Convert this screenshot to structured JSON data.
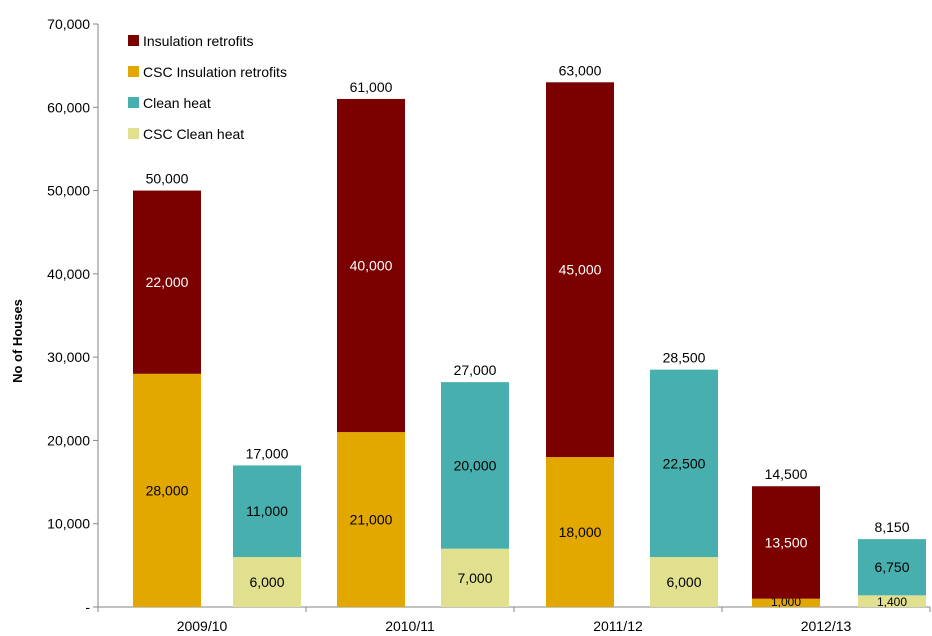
{
  "chart_data": {
    "type": "bar",
    "stacked": true,
    "ylabel": "No of Houses",
    "xlabel": "",
    "ylim": [
      0,
      70000
    ],
    "y_ticks": [
      {
        "value": 0,
        "label": "-"
      },
      {
        "value": 10000,
        "label": "10,000"
      },
      {
        "value": 20000,
        "label": "20,000"
      },
      {
        "value": 30000,
        "label": "30,000"
      },
      {
        "value": 40000,
        "label": "40,000"
      },
      {
        "value": 50000,
        "label": "50,000"
      },
      {
        "value": 60000,
        "label": "60,000"
      },
      {
        "value": 70000,
        "label": "70,000"
      }
    ],
    "categories": [
      "2009/10",
      "2010/11",
      "2011/12",
      "2012/13"
    ],
    "legend": {
      "position": "top-left",
      "entries": [
        {
          "name": "Insulation retrofits",
          "color": "#7b0000"
        },
        {
          "name": "CSC Insulation retrofits",
          "color": "#e2a800"
        },
        {
          "name": "Clean heat",
          "color": "#47b0ae"
        },
        {
          "name": "CSC Clean heat",
          "color": "#e0e08f"
        }
      ]
    },
    "bars": [
      {
        "category": "2009/10",
        "group": "insulation",
        "total": 50000,
        "total_label": "50,000",
        "segments": [
          {
            "series": "CSC Insulation retrofits",
            "value": 28000,
            "label": "28,000",
            "color": "#e2a800",
            "text_color": "#000000"
          },
          {
            "series": "Insulation retrofits",
            "value": 22000,
            "label": "22,000",
            "color": "#7b0000",
            "text_color": "#ffffff"
          }
        ]
      },
      {
        "category": "2009/10",
        "group": "clean-heat",
        "total": 17000,
        "total_label": "17,000",
        "segments": [
          {
            "series": "CSC Clean heat",
            "value": 6000,
            "label": "6,000",
            "color": "#e0e08f",
            "text_color": "#000000"
          },
          {
            "series": "Clean heat",
            "value": 11000,
            "label": "11,000",
            "color": "#47b0ae",
            "text_color": "#000000"
          }
        ]
      },
      {
        "category": "2010/11",
        "group": "insulation",
        "total": 61000,
        "total_label": "61,000",
        "segments": [
          {
            "series": "CSC Insulation retrofits",
            "value": 21000,
            "label": "21,000",
            "color": "#e2a800",
            "text_color": "#000000"
          },
          {
            "series": "Insulation retrofits",
            "value": 40000,
            "label": "40,000",
            "color": "#7b0000",
            "text_color": "#ffffff"
          }
        ]
      },
      {
        "category": "2010/11",
        "group": "clean-heat",
        "total": 27000,
        "total_label": "27,000",
        "segments": [
          {
            "series": "CSC Clean heat",
            "value": 7000,
            "label": "7,000",
            "color": "#e0e08f",
            "text_color": "#000000"
          },
          {
            "series": "Clean heat",
            "value": 20000,
            "label": "20,000",
            "color": "#47b0ae",
            "text_color": "#000000"
          }
        ]
      },
      {
        "category": "2011/12",
        "group": "insulation",
        "total": 63000,
        "total_label": "63,000",
        "segments": [
          {
            "series": "CSC Insulation retrofits",
            "value": 18000,
            "label": "18,000",
            "color": "#e2a800",
            "text_color": "#000000"
          },
          {
            "series": "Insulation retrofits",
            "value": 45000,
            "label": "45,000",
            "color": "#7b0000",
            "text_color": "#ffffff"
          }
        ]
      },
      {
        "category": "2011/12",
        "group": "clean-heat",
        "total": 28500,
        "total_label": "28,500",
        "segments": [
          {
            "series": "CSC Clean heat",
            "value": 6000,
            "label": "6,000",
            "color": "#e0e08f",
            "text_color": "#000000"
          },
          {
            "series": "Clean heat",
            "value": 22500,
            "label": "22,500",
            "color": "#47b0ae",
            "text_color": "#000000"
          }
        ]
      },
      {
        "category": "2012/13",
        "group": "insulation",
        "total": 14500,
        "total_label": "14,500",
        "segments": [
          {
            "series": "CSC Insulation retrofits",
            "value": 1000,
            "label": "1,000",
            "color": "#e2a800",
            "text_color": "#000000"
          },
          {
            "series": "Insulation retrofits",
            "value": 13500,
            "label": "13,500",
            "color": "#7b0000",
            "text_color": "#ffffff"
          }
        ]
      },
      {
        "category": "2012/13",
        "group": "clean-heat",
        "total": 8150,
        "total_label": "8,150",
        "segments": [
          {
            "series": "CSC Clean heat",
            "value": 1400,
            "label": "1,400",
            "color": "#e0e08f",
            "text_color": "#000000"
          },
          {
            "series": "Clean heat",
            "value": 6750,
            "label": "6,750",
            "color": "#47b0ae",
            "text_color": "#000000"
          }
        ]
      }
    ]
  }
}
